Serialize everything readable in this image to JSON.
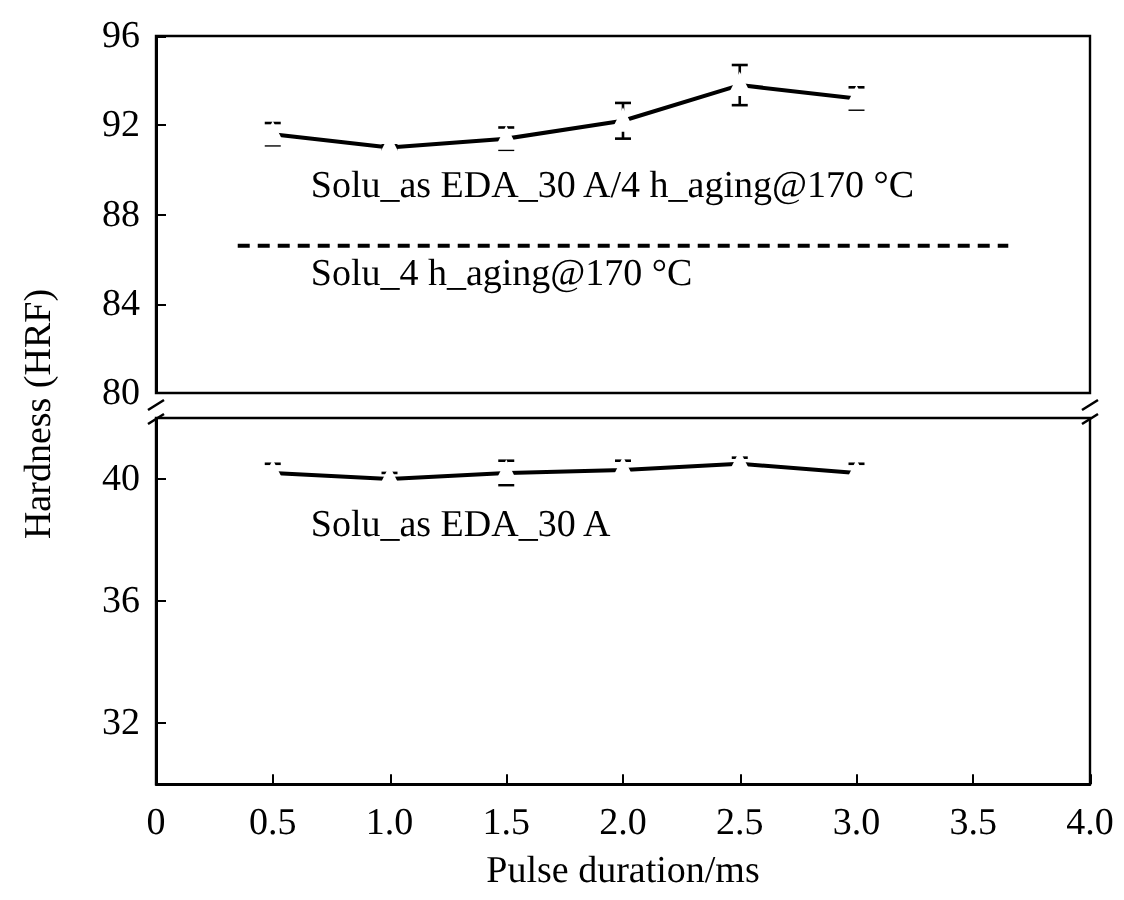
{
  "chart_data": [
    {
      "type": "line",
      "ylabel": "Hardness (HRF)",
      "xlim": [
        0,
        4
      ],
      "ylim": [
        80,
        96
      ],
      "yticks": [
        80,
        84,
        88,
        92,
        96
      ],
      "tick_labels": "y",
      "grid": false,
      "marker": "triangle",
      "line_style": "solid",
      "series": [
        {
          "name": "Solu_as EDA_30 A/4 h_aging@170 °C",
          "color": "#000000",
          "x": [
            0.5,
            1.0,
            1.5,
            2.0,
            2.5,
            3.0
          ],
          "values": [
            91.6,
            91.0,
            91.4,
            92.2,
            93.8,
            93.2
          ],
          "errors": [
            0.5,
            0.1,
            0.5,
            0.8,
            0.9,
            0.5
          ]
        },
        {
          "name": "Solu_4 h_aging@170 °C",
          "color": "#000000",
          "x": [
            0.35,
            3.65
          ],
          "values": [
            86.6,
            86.6
          ],
          "marker": "none",
          "line_style": "dashed"
        }
      ]
    },
    {
      "type": "line",
      "xlabel": "Pulse duration/ms",
      "xlim": [
        0,
        4
      ],
      "xticks": [
        0,
        {
          "value": 0.5,
          "label": "0.5"
        },
        {
          "value": 1,
          "label": "1.0"
        },
        {
          "value": 1.5,
          "label": "1.5"
        },
        {
          "value": 2,
          "label": "2.0"
        },
        {
          "value": 2.5,
          "label": "2.5"
        },
        {
          "value": 3,
          "label": "3.0"
        },
        {
          "value": 3.5,
          "label": "3.5"
        },
        {
          "value": 4,
          "label": "4.0"
        }
      ],
      "ylim": [
        30,
        42
      ],
      "yticks": [
        32,
        36,
        40
      ],
      "grid": false,
      "marker": "triangle",
      "line_style": "solid",
      "series": [
        {
          "name": "Solu_as EDA_30 A",
          "color": "#000000",
          "x": [
            0.5,
            1.0,
            1.5,
            2.0,
            2.5,
            3.0
          ],
          "values": [
            40.2,
            40.0,
            40.2,
            40.3,
            40.5,
            40.2
          ],
          "errors": [
            0.3,
            0.2,
            0.4,
            0.3,
            0.2,
            0.3
          ]
        }
      ]
    }
  ]
}
